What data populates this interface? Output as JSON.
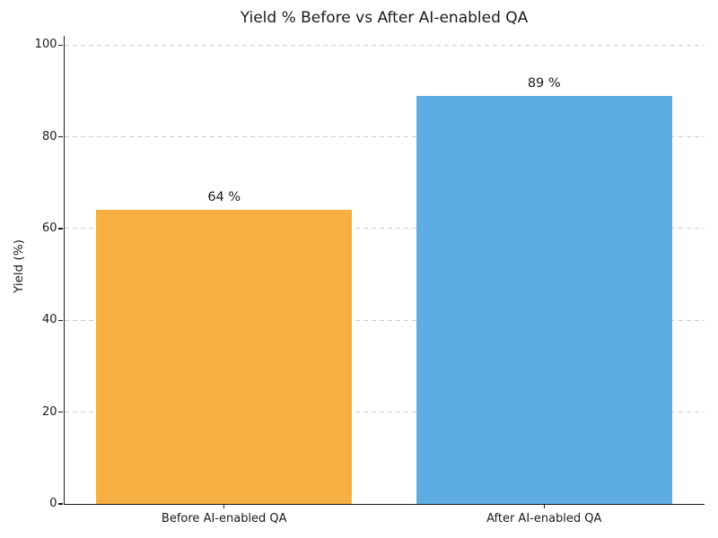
{
  "chart_data": {
    "type": "bar",
    "title": "Yield % Before vs After AI-enabled QA",
    "categories": [
      "Before AI-enabled QA",
      "After AI-enabled QA"
    ],
    "values": [
      64,
      89
    ],
    "bar_labels": [
      "64 %",
      "89 %"
    ],
    "bar_colors": [
      "#F5B041",
      "#5DADE2"
    ],
    "xlabel": "",
    "ylabel": "Yield (%)",
    "yticks": [
      0,
      20,
      40,
      60,
      80,
      100
    ],
    "ylim": [
      0,
      102
    ],
    "grid": {
      "axis": "y",
      "style": "dashed",
      "color": "#cccccc"
    },
    "background": "#ffffff",
    "text_color": "#1a1a1a"
  }
}
